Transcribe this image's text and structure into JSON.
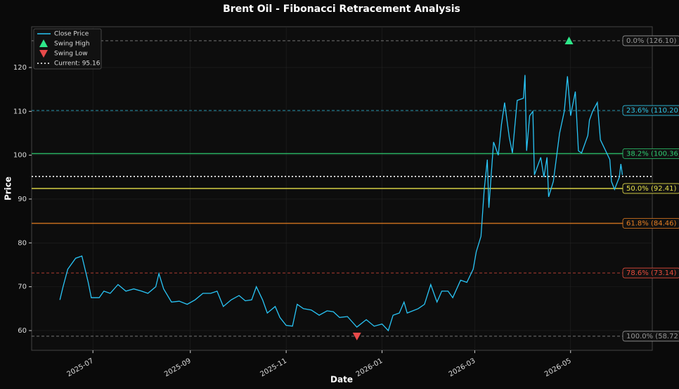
{
  "chart_data": {
    "type": "line",
    "title": "Brent Oil - Fibonacci Retracement Analysis",
    "x_label": "Date",
    "y_label": "Price",
    "series": [
      {
        "name": "Close Price",
        "color": "#29c5f6",
        "x": [
          "2025-06-10",
          "2025-06-12",
          "2025-06-15",
          "2025-06-20",
          "2025-06-24",
          "2025-06-28",
          "2025-06-30",
          "2025-07-05",
          "2025-07-08",
          "2025-07-12",
          "2025-07-17",
          "2025-07-22",
          "2025-07-27",
          "2025-08-01",
          "2025-08-05",
          "2025-08-10",
          "2025-08-12",
          "2025-08-15",
          "2025-08-20",
          "2025-08-25",
          "2025-08-30",
          "2025-09-04",
          "2025-09-09",
          "2025-09-14",
          "2025-09-18",
          "2025-09-22",
          "2025-09-27",
          "2025-10-02",
          "2025-10-06",
          "2025-10-10",
          "2025-10-13",
          "2025-10-17",
          "2025-10-20",
          "2025-10-25",
          "2025-10-28",
          "2025-11-01",
          "2025-11-05",
          "2025-11-08",
          "2025-11-12",
          "2025-11-17",
          "2025-11-22",
          "2025-11-27",
          "2025-12-01",
          "2025-12-05",
          "2025-12-10",
          "2025-12-16",
          "2025-12-22",
          "2025-12-27",
          "2026-01-01",
          "2026-01-05",
          "2026-01-08",
          "2026-01-12",
          "2026-01-15",
          "2026-01-17",
          "2026-01-24",
          "2026-01-28",
          "2026-02-01",
          "2026-02-05",
          "2026-02-08",
          "2026-02-12",
          "2026-02-15",
          "2026-02-20",
          "2026-02-24",
          "2026-02-28",
          "2026-03-02",
          "2026-03-05",
          "2026-03-07",
          "2026-03-09",
          "2026-03-10",
          "2026-03-13",
          "2026-03-16",
          "2026-03-18",
          "2026-03-20",
          "2026-03-23",
          "2026-03-25",
          "2026-03-28",
          "2026-04-01",
          "2026-04-02",
          "2026-04-03",
          "2026-04-05",
          "2026-04-07",
          "2026-04-08",
          "2026-04-12",
          "2026-04-14",
          "2026-04-16",
          "2026-04-17",
          "2026-04-20",
          "2026-04-24",
          "2026-04-27",
          "2026-04-29",
          "2026-05-01",
          "2026-05-04",
          "2026-05-06",
          "2026-05-08",
          "2026-05-12",
          "2026-05-13",
          "2026-05-15",
          "2026-05-18",
          "2026-05-20",
          "2026-05-22",
          "2026-05-26",
          "2026-05-27",
          "2026-05-29",
          "2026-06-01",
          "2026-06-02",
          "2026-06-03"
        ],
        "values": [
          67,
          70,
          74,
          76.5,
          77,
          71,
          67.5,
          67.5,
          69,
          68.5,
          70.5,
          69,
          69.5,
          69,
          68.5,
          70,
          73,
          69.5,
          66.5,
          66.7,
          66,
          67,
          68.5,
          68.5,
          69,
          65.5,
          67,
          68,
          66.8,
          67,
          70,
          67,
          64,
          65.5,
          63,
          61.2,
          61,
          66,
          65,
          64.7,
          63.5,
          64.5,
          64.3,
          63,
          63.2,
          60.8,
          62.5,
          61,
          61.5,
          60,
          63.5,
          64,
          66.5,
          64,
          65,
          66,
          70.5,
          66.5,
          69,
          69,
          67.5,
          71.5,
          71,
          74,
          78,
          81.5,
          92,
          99,
          88,
          103,
          100,
          107,
          112,
          104,
          100.5,
          112.5,
          113,
          118.3,
          101,
          109,
          110,
          95.5,
          99.5,
          95,
          99.5,
          90.5,
          94,
          105,
          110,
          118,
          109,
          114.5,
          101,
          100.5,
          104.5,
          108,
          110,
          112,
          103.5,
          102,
          99,
          94,
          92.2,
          95,
          98,
          95.5
        ]
      }
    ],
    "markers": [
      {
        "name": "Swing High",
        "x": "2026-04-30",
        "value": 126.1,
        "color": "#2ee88a",
        "shape": "up"
      },
      {
        "name": "Swing Low",
        "x": "2025-12-16",
        "value": 58.72,
        "color": "#e84a4a",
        "shape": "down"
      }
    ],
    "current": {
      "label": "Current: 95.16",
      "value": 95.16,
      "color": "#ffffff"
    },
    "levels": [
      {
        "label": "0.0% (126.10)",
        "value": 126.1,
        "color": "#999999",
        "dash": true
      },
      {
        "label": "23.6% (110.20)",
        "value": 110.2,
        "color": "#2ec4e6",
        "dash": true
      },
      {
        "label": "38.2% (100.36)",
        "value": 100.36,
        "color": "#2ecc71",
        "dash": false
      },
      {
        "label": "50.0% (92.41)",
        "value": 92.41,
        "color": "#e6e04a",
        "dash": false
      },
      {
        "label": "61.8% (84.46)",
        "value": 84.46,
        "color": "#e67e22",
        "dash": false
      },
      {
        "label": "78.6% (73.14)",
        "value": 73.14,
        "color": "#e74c3c",
        "dash": true
      },
      {
        "label": "100.0% (58.72)",
        "value": 58.72,
        "color": "#999999",
        "dash": true
      }
    ],
    "xlim": [
      "2025-05-23",
      "2026-06-22"
    ],
    "xticks": [
      {
        "value": "2025-07-01",
        "label": "2025-07"
      },
      {
        "value": "2025-09-01",
        "label": "2025-09"
      },
      {
        "value": "2025-11-01",
        "label": "2025-11"
      },
      {
        "value": "2026-01-01",
        "label": "2026-01"
      },
      {
        "value": "2026-03-01",
        "label": "2026-03"
      },
      {
        "value": "2026-05-01",
        "label": "2026-05"
      }
    ],
    "ylim": [
      55.5,
      129.3
    ],
    "yticks": [
      60,
      70,
      80,
      90,
      100,
      110,
      120
    ],
    "grid": true,
    "legend": "upper left"
  }
}
